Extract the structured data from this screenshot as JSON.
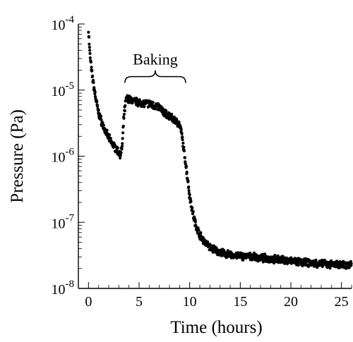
{
  "chart_data": {
    "type": "scatter",
    "title": "",
    "xlabel": "Time (hours)",
    "ylabel": "Pressure (Pa)",
    "xlim": [
      -1,
      26
    ],
    "ylim": [
      1e-08,
      0.0001
    ],
    "yscale": "log",
    "x_ticks": [
      0,
      5,
      10,
      15,
      20,
      25
    ],
    "x_tick_labels": [
      "0",
      "5",
      "10",
      "15",
      "20",
      "25"
    ],
    "y_ticks": [
      1e-08,
      1e-07,
      1e-06,
      1e-05,
      0.0001
    ],
    "y_tick_labels": [
      {
        "base": "10",
        "exp": "-8"
      },
      {
        "base": "10",
        "exp": "-7"
      },
      {
        "base": "10",
        "exp": "-6"
      },
      {
        "base": "10",
        "exp": "-5"
      },
      {
        "base": "10",
        "exp": "-4"
      }
    ],
    "grid": false,
    "series": [
      {
        "x": [
          0.0,
          0.05,
          0.1,
          0.2,
          0.3,
          0.5,
          0.75,
          1.0,
          1.3,
          1.6,
          2.0,
          2.4,
          2.8,
          3.1,
          3.2,
          3.35,
          3.5,
          3.7,
          3.9,
          4.2,
          5.0,
          6.0,
          7.0,
          7.5,
          8.0,
          8.5,
          8.8,
          9.0,
          9.2,
          9.4,
          9.6,
          9.8,
          10.0,
          10.3,
          10.6,
          11.0,
          11.5,
          12.0,
          13.0,
          14.0,
          15.0,
          16.0,
          17.0,
          18.0,
          19.0,
          20.0,
          21.0,
          22.0,
          23.0,
          24.0,
          25.0,
          26.0
        ],
        "y": [
          8e-05,
          6e-05,
          4.2e-05,
          2.8e-05,
          2e-05,
          1.2e-05,
          7e-06,
          4.5e-06,
          3.3e-06,
          2.5e-06,
          1.9e-06,
          1.5e-06,
          1.25e-06,
          1.1e-06,
          1.05e-06,
          1.5e-06,
          4e-06,
          7e-06,
          7.5e-06,
          7e-06,
          6.5e-06,
          6.2e-06,
          5.5e-06,
          4.5e-06,
          4e-06,
          3.5e-06,
          3.2e-06,
          3e-06,
          2.2e-06,
          1.3e-06,
          8e-07,
          4.5e-07,
          2.5e-07,
          1.4e-07,
          9e-08,
          6.5e-08,
          5e-08,
          4.2e-08,
          3.5e-08,
          3.2e-08,
          3.1e-08,
          3e-08,
          2.9e-08,
          2.8e-08,
          2.7e-08,
          2.6e-08,
          2.5e-08,
          2.4e-08,
          2.35e-08,
          2.3e-08,
          2.3e-08,
          2.3e-08
        ]
      }
    ],
    "annotations": [
      {
        "text": "Baking",
        "x_start": 3.6,
        "x_end": 9.6,
        "y": 1.6e-05
      }
    ]
  }
}
